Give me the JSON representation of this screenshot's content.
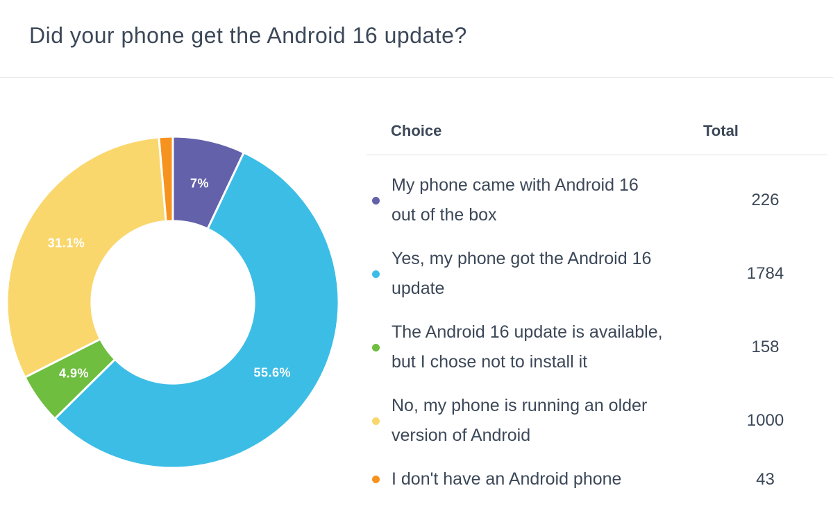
{
  "header": {
    "title": "Did your phone get the Android 16 update?"
  },
  "table": {
    "choice_header": "Choice",
    "total_header": "Total",
    "rows": [
      {
        "label": "My phone came with Android 16 out of the box",
        "total": "226"
      },
      {
        "label": "Yes, my phone got the Android 16 update",
        "total": "1784"
      },
      {
        "label": "The Android 16 update is available, but I chose not to install it",
        "total": "158"
      },
      {
        "label": "No, my phone is running an older version of Android",
        "total": "1000"
      },
      {
        "label": "I don't have an Android phone",
        "total": "43"
      }
    ]
  },
  "chart_data": {
    "type": "pie",
    "subtype": "donut",
    "title": "Did your phone get the Android 16 update?",
    "labels": [
      "My phone came with Android 16 out of the box",
      "Yes, my phone got the Android 16 update",
      "The Android 16 update is available, but I chose not to install it",
      "No, my phone is running an older version of Android",
      "I don't have an Android phone"
    ],
    "values": [
      226,
      1784,
      158,
      1000,
      43
    ],
    "percent_labels": [
      "7%",
      "55.6%",
      "4.9%",
      "31.1%",
      ""
    ],
    "colors": [
      "#6461ab",
      "#3cbde6",
      "#6fbe3f",
      "#fad76d",
      "#f6921e"
    ],
    "slice_label_color": "#ffffff",
    "start_angle_deg": 0,
    "direction": "clockwise",
    "inner_radius_ratio": 0.49,
    "legend_position": "right"
  },
  "colors": {
    "text": "#3c4858",
    "header_divider": "#e7e7e7",
    "table_divider": "#dadde0",
    "background": "#ffffff"
  }
}
